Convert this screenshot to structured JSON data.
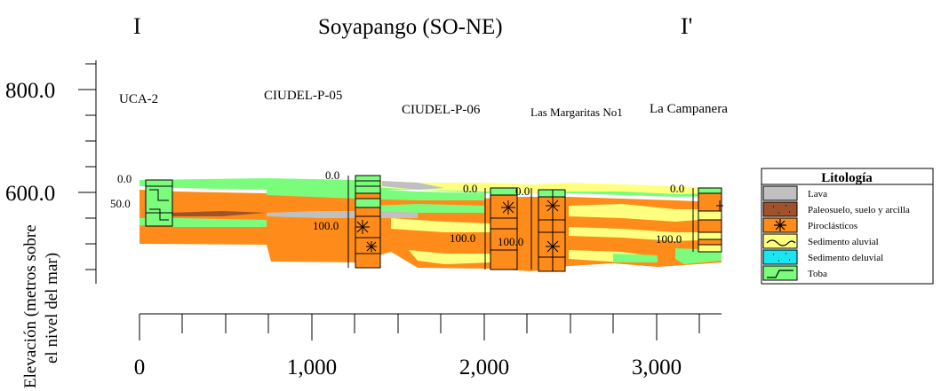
{
  "title": "Soyapango (SO-NE)",
  "section_start_label": "I",
  "section_end_label": "I'",
  "y_axis": {
    "label_line1": "Elevación (metros sobre",
    "label_line2": "el nivel del mar)",
    "ticks": [
      "800.0",
      "600.0"
    ]
  },
  "x_axis": {
    "ticks": [
      "0",
      "1,000",
      "2,000",
      "3,000"
    ]
  },
  "wells": [
    {
      "name": "UCA-2",
      "top_label": "0.0",
      "depth_label": "50.0"
    },
    {
      "name": "CIUDEL-P-05",
      "top_label": "0.0",
      "depth_label": "100.0"
    },
    {
      "name": "CIUDEL-P-06",
      "top_label": "0.0",
      "depth_label": "100.0"
    },
    {
      "name": "Las Margaritas No1",
      "top_label": "0.0",
      "depth_label": "100.0"
    },
    {
      "name": "La Campanera",
      "top_label": "0.0",
      "depth_label": "100.0"
    }
  ],
  "legend": {
    "title": "Litología",
    "items": [
      {
        "label": "Lava",
        "color": "#c0c0c0",
        "pattern": "solid"
      },
      {
        "label": "Paleosuelo, suelo y arcilla",
        "color": "#a0522d",
        "pattern": "dots"
      },
      {
        "label": "Piroclásticos",
        "color": "#ff8c1a",
        "pattern": "asterisk"
      },
      {
        "label": "Sedimento aluvial",
        "color": "#ffff80",
        "pattern": "wave"
      },
      {
        "label": "Sedimento deluvial",
        "color": "#19e6f0",
        "pattern": "dots"
      },
      {
        "label": "Toba",
        "color": "#7cfc7c",
        "pattern": "step"
      }
    ]
  }
}
